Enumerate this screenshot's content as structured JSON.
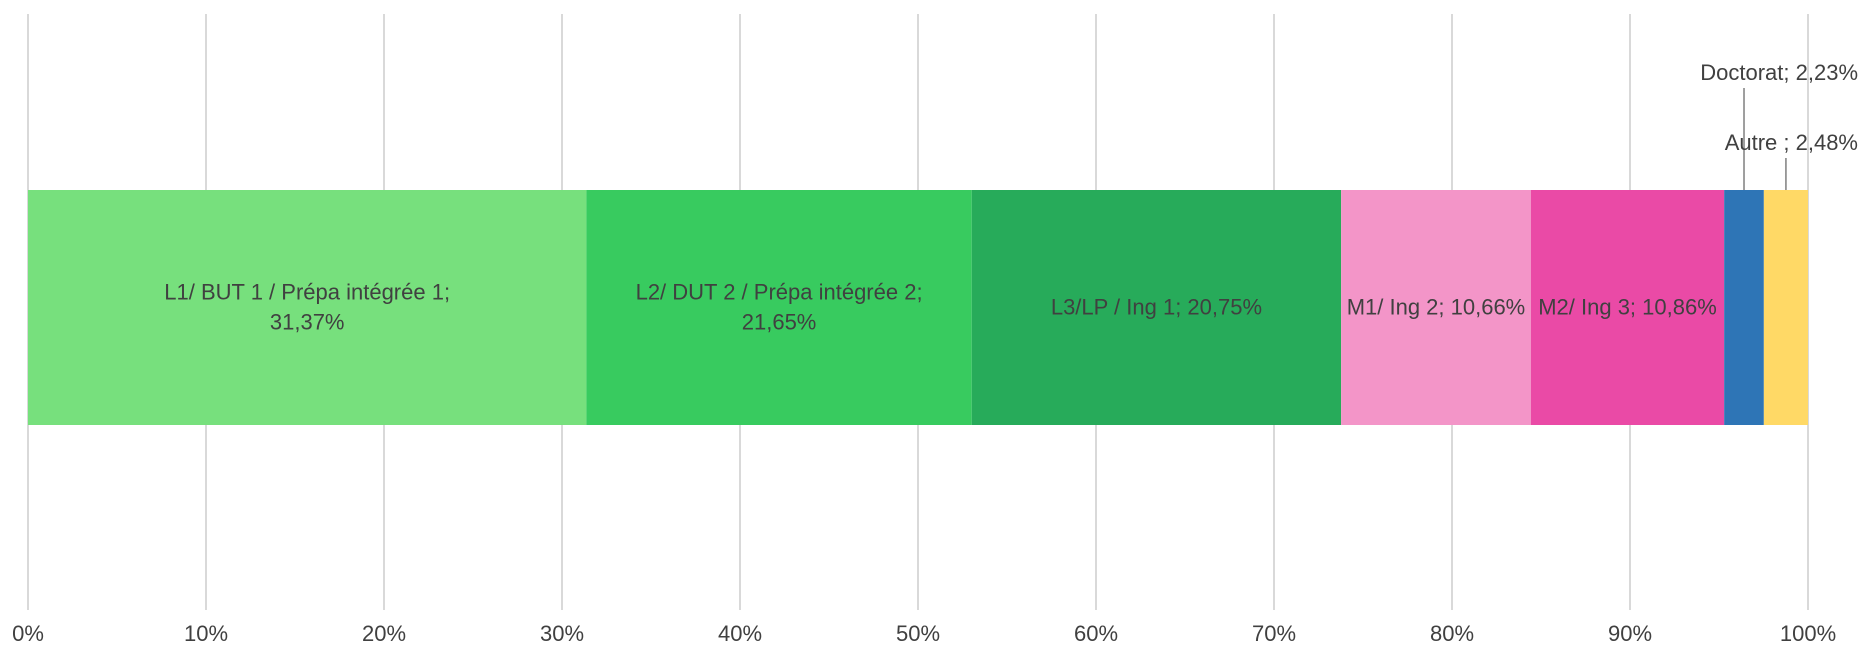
{
  "chart_data": {
    "type": "bar",
    "orientation": "horizontal",
    "stacked": true,
    "title": "",
    "xlabel": "",
    "ylabel": "",
    "xlim": [
      0,
      100
    ],
    "grid": true,
    "legend": "none",
    "ticks": [
      "0%",
      "10%",
      "20%",
      "30%",
      "40%",
      "50%",
      "60%",
      "70%",
      "80%",
      "90%",
      "100%"
    ],
    "series": [
      {
        "name": "L1/ BUT 1 / Prépa intégrée 1",
        "value": 31.37,
        "label": [
          "L1/ BUT 1 / Prépa intégrée 1;",
          "31,37%"
        ],
        "color": "#77e07d",
        "label_pos": "inside"
      },
      {
        "name": "L2/ DUT 2 / Prépa intégrée 2",
        "value": 21.65,
        "label": [
          "L2/ DUT 2 / Prépa intégrée 2;",
          "21,65%"
        ],
        "color": "#38cb5f",
        "label_pos": "inside"
      },
      {
        "name": "L3/LP / Ing 1",
        "value": 20.75,
        "label": [
          "L3/LP / Ing 1; 20,75%"
        ],
        "color": "#27ab5a",
        "label_pos": "inside"
      },
      {
        "name": "M1/ Ing 2",
        "value": 10.66,
        "label": [
          "M1/ Ing 2; 10,66%"
        ],
        "color": "#f395c8",
        "label_pos": "inside"
      },
      {
        "name": "M2/ Ing 3",
        "value": 10.86,
        "label": [
          "M2/ Ing 3; 10,86%"
        ],
        "color": "#ea4aa6",
        "label_pos": "inside"
      },
      {
        "name": "Doctorat",
        "value": 2.23,
        "label": [
          "Doctorat; 2,23%"
        ],
        "color": "#2e75b6",
        "label_pos": "callout"
      },
      {
        "name": "Autre",
        "value": 2.48,
        "label": [
          "Autre ; 2,48%"
        ],
        "color": "#ffd966",
        "label_pos": "callout"
      }
    ]
  }
}
